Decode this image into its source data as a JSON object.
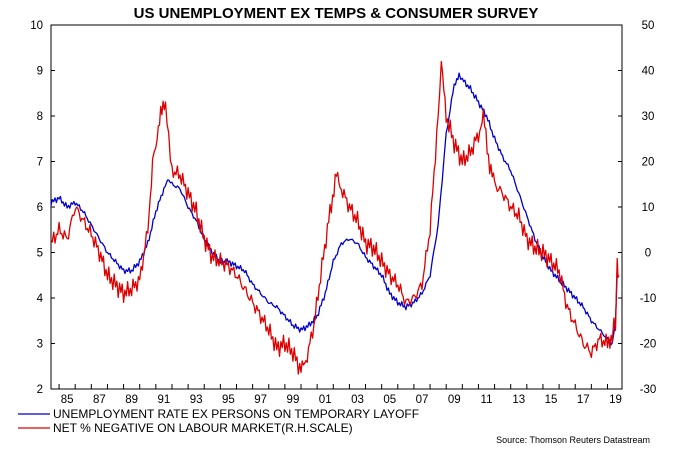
{
  "chart_data": {
    "type": "line",
    "title": "US UNEMPLOYMENT EX TEMPS & CONSUMER SURVEY",
    "source": "Source: Thomson Reuters Datastream",
    "x_range": [
      1984.5,
      2019.9
    ],
    "x_ticks": [
      {
        "value": 1985.5,
        "label": "85"
      },
      {
        "value": 1987.5,
        "label": "87"
      },
      {
        "value": 1989.5,
        "label": "89"
      },
      {
        "value": 1991.5,
        "label": "91"
      },
      {
        "value": 1993.5,
        "label": "93"
      },
      {
        "value": 1995.5,
        "label": "95"
      },
      {
        "value": 1997.5,
        "label": "97"
      },
      {
        "value": 1999.5,
        "label": "99"
      },
      {
        "value": 2001.5,
        "label": "01"
      },
      {
        "value": 2003.5,
        "label": "03"
      },
      {
        "value": 2005.5,
        "label": "05"
      },
      {
        "value": 2007.5,
        "label": "07"
      },
      {
        "value": 2009.5,
        "label": "09"
      },
      {
        "value": 2011.5,
        "label": "11"
      },
      {
        "value": 2013.5,
        "label": "13"
      },
      {
        "value": 2015.5,
        "label": "15"
      },
      {
        "value": 2017.5,
        "label": "17"
      },
      {
        "value": 2019.5,
        "label": "19"
      }
    ],
    "left_axis": {
      "range": [
        2,
        10
      ],
      "ticks": [
        "2",
        "3",
        "4",
        "5",
        "6",
        "7",
        "8",
        "9",
        "10"
      ]
    },
    "right_axis": {
      "range": [
        -30,
        50
      ],
      "ticks": [
        "-30",
        "-20",
        "-10",
        "0",
        "10",
        "20",
        "30",
        "40",
        "50"
      ]
    },
    "series": [
      {
        "name": "UNEMPLOYMENT RATE EX PERSONS ON TEMPORARY LAYOFF",
        "axis": "left",
        "color": "#0000cc",
        "points": [
          [
            1984.5,
            6.1
          ],
          [
            1985.0,
            6.2
          ],
          [
            1985.5,
            6.0
          ],
          [
            1986.0,
            6.1
          ],
          [
            1986.5,
            5.9
          ],
          [
            1987.0,
            5.6
          ],
          [
            1987.5,
            5.3
          ],
          [
            1988.0,
            5.0
          ],
          [
            1988.5,
            4.8
          ],
          [
            1989.0,
            4.6
          ],
          [
            1989.5,
            4.6
          ],
          [
            1990.0,
            4.8
          ],
          [
            1990.5,
            5.2
          ],
          [
            1991.0,
            5.9
          ],
          [
            1991.5,
            6.4
          ],
          [
            1991.8,
            6.6
          ],
          [
            1992.0,
            6.5
          ],
          [
            1992.5,
            6.4
          ],
          [
            1993.0,
            6.0
          ],
          [
            1993.5,
            5.7
          ],
          [
            1994.0,
            5.3
          ],
          [
            1994.5,
            5.0
          ],
          [
            1995.0,
            4.8
          ],
          [
            1995.5,
            4.8
          ],
          [
            1996.0,
            4.7
          ],
          [
            1996.5,
            4.6
          ],
          [
            1997.0,
            4.3
          ],
          [
            1997.5,
            4.1
          ],
          [
            1998.0,
            3.9
          ],
          [
            1998.5,
            3.8
          ],
          [
            1999.0,
            3.6
          ],
          [
            1999.5,
            3.4
          ],
          [
            2000.0,
            3.3
          ],
          [
            2000.5,
            3.4
          ],
          [
            2001.0,
            3.6
          ],
          [
            2001.5,
            4.1
          ],
          [
            2002.0,
            4.8
          ],
          [
            2002.5,
            5.2
          ],
          [
            2003.0,
            5.3
          ],
          [
            2003.5,
            5.2
          ],
          [
            2004.0,
            4.9
          ],
          [
            2004.5,
            4.7
          ],
          [
            2005.0,
            4.5
          ],
          [
            2005.5,
            4.1
          ],
          [
            2006.0,
            3.9
          ],
          [
            2006.5,
            3.8
          ],
          [
            2007.0,
            3.9
          ],
          [
            2007.5,
            4.1
          ],
          [
            2008.0,
            4.5
          ],
          [
            2008.5,
            5.6
          ],
          [
            2009.0,
            7.6
          ],
          [
            2009.5,
            8.7
          ],
          [
            2009.8,
            8.9
          ],
          [
            2010.0,
            8.8
          ],
          [
            2010.5,
            8.6
          ],
          [
            2011.0,
            8.3
          ],
          [
            2011.5,
            8.0
          ],
          [
            2012.0,
            7.5
          ],
          [
            2012.5,
            7.1
          ],
          [
            2013.0,
            6.8
          ],
          [
            2013.5,
            6.3
          ],
          [
            2014.0,
            5.8
          ],
          [
            2014.5,
            5.3
          ],
          [
            2015.0,
            4.9
          ],
          [
            2015.5,
            4.6
          ],
          [
            2016.0,
            4.4
          ],
          [
            2016.5,
            4.2
          ],
          [
            2017.0,
            4.0
          ],
          [
            2017.5,
            3.8
          ],
          [
            2018.0,
            3.5
          ],
          [
            2018.5,
            3.3
          ],
          [
            2019.0,
            3.1
          ],
          [
            2019.3,
            3.0
          ],
          [
            2019.5,
            3.5
          ],
          [
            2019.6,
            4.6
          ]
        ]
      },
      {
        "name": "NET % NEGATIVE ON LABOUR MARKET(R.H.SCALE)",
        "axis": "right",
        "color": "#dd0000",
        "points": [
          [
            1984.5,
            2
          ],
          [
            1985.0,
            5
          ],
          [
            1985.5,
            3
          ],
          [
            1986.0,
            10
          ],
          [
            1986.5,
            7
          ],
          [
            1987.0,
            4
          ],
          [
            1987.5,
            0
          ],
          [
            1988.0,
            -5
          ],
          [
            1988.5,
            -7
          ],
          [
            1989.0,
            -9
          ],
          [
            1989.5,
            -8
          ],
          [
            1990.0,
            -6
          ],
          [
            1990.5,
            5
          ],
          [
            1990.8,
            20
          ],
          [
            1991.0,
            24
          ],
          [
            1991.3,
            30
          ],
          [
            1991.6,
            33
          ],
          [
            1991.8,
            25
          ],
          [
            1992.0,
            18
          ],
          [
            1992.5,
            17
          ],
          [
            1993.0,
            13
          ],
          [
            1993.5,
            9
          ],
          [
            1994.0,
            3
          ],
          [
            1994.5,
            -1
          ],
          [
            1995.0,
            -2
          ],
          [
            1995.5,
            -3
          ],
          [
            1996.0,
            -5
          ],
          [
            1996.5,
            -8
          ],
          [
            1997.0,
            -11
          ],
          [
            1997.5,
            -14
          ],
          [
            1998.0,
            -17
          ],
          [
            1998.5,
            -21
          ],
          [
            1999.0,
            -20
          ],
          [
            1999.5,
            -22
          ],
          [
            2000.0,
            -26
          ],
          [
            2000.3,
            -24
          ],
          [
            2000.8,
            -16
          ],
          [
            2001.3,
            -3
          ],
          [
            2001.8,
            9
          ],
          [
            2002.2,
            17
          ],
          [
            2002.5,
            14
          ],
          [
            2003.0,
            10
          ],
          [
            2003.5,
            7
          ],
          [
            2004.0,
            2
          ],
          [
            2004.5,
            1
          ],
          [
            2005.0,
            -2
          ],
          [
            2005.5,
            -5
          ],
          [
            2006.0,
            -7
          ],
          [
            2006.5,
            -11
          ],
          [
            2007.0,
            -10
          ],
          [
            2007.5,
            -7
          ],
          [
            2008.0,
            5
          ],
          [
            2008.5,
            30
          ],
          [
            2008.7,
            41
          ],
          [
            2009.0,
            30
          ],
          [
            2009.5,
            24
          ],
          [
            2010.0,
            20
          ],
          [
            2010.5,
            22
          ],
          [
            2011.0,
            26
          ],
          [
            2011.3,
            30
          ],
          [
            2011.7,
            19
          ],
          [
            2012.0,
            15
          ],
          [
            2012.5,
            13
          ],
          [
            2013.0,
            10
          ],
          [
            2013.5,
            8
          ],
          [
            2014.0,
            3
          ],
          [
            2014.5,
            1
          ],
          [
            2015.0,
            0
          ],
          [
            2015.5,
            -2
          ],
          [
            2016.0,
            -4
          ],
          [
            2016.5,
            -12
          ],
          [
            2017.0,
            -16
          ],
          [
            2017.5,
            -20
          ],
          [
            2018.0,
            -22
          ],
          [
            2018.5,
            -19
          ],
          [
            2019.0,
            -20
          ],
          [
            2019.3,
            -18
          ],
          [
            2019.5,
            -15
          ],
          [
            2019.6,
            -3
          ],
          [
            2019.7,
            -5
          ]
        ]
      }
    ]
  }
}
